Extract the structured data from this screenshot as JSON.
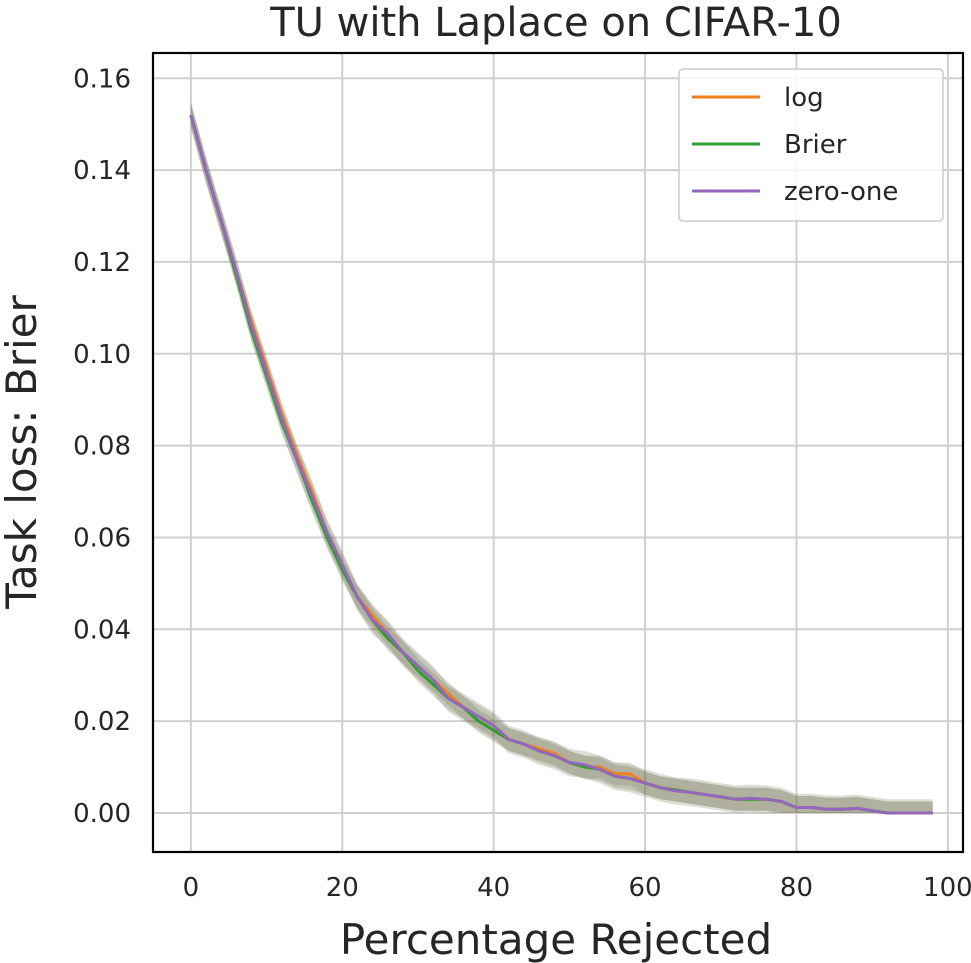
{
  "chart_data": {
    "type": "line",
    "title": "TU with Laplace on CIFAR-10",
    "xlabel": "Percentage Rejected",
    "ylabel": "Task loss: Brier",
    "xlim": [
      -5,
      102
    ],
    "ylim": [
      -0.0085,
      0.1655
    ],
    "xticks": [
      0,
      20,
      40,
      60,
      80,
      100
    ],
    "xtick_labels": [
      "0",
      "20",
      "40",
      "60",
      "80",
      "100"
    ],
    "yticks": [
      0.0,
      0.02,
      0.04,
      0.06,
      0.08,
      0.1,
      0.12,
      0.14,
      0.16
    ],
    "ytick_labels": [
      "0.00",
      "0.02",
      "0.04",
      "0.06",
      "0.08",
      "0.10",
      "0.12",
      "0.14",
      "0.16"
    ],
    "grid": true,
    "legend_position": "top-right",
    "x": [
      0,
      2,
      4,
      6,
      8,
      10,
      12,
      14,
      16,
      18,
      20,
      22,
      24,
      26,
      28,
      30,
      32,
      34,
      36,
      38,
      40,
      42,
      44,
      46,
      48,
      50,
      52,
      54,
      56,
      58,
      60,
      62,
      64,
      66,
      68,
      70,
      72,
      74,
      76,
      78,
      80,
      82,
      84,
      86,
      88,
      90,
      92,
      94,
      96,
      98
    ],
    "series": [
      {
        "name": "log",
        "color": "#f07f1e",
        "values": [
          0.152,
          0.14,
          0.129,
          0.118,
          0.107,
          0.097,
          0.087,
          0.078,
          0.07,
          0.061,
          0.054,
          0.047,
          0.043,
          0.039,
          0.035,
          0.032,
          0.029,
          0.026,
          0.023,
          0.021,
          0.019,
          0.016,
          0.015,
          0.014,
          0.013,
          0.011,
          0.01,
          0.01,
          0.0085,
          0.0085,
          0.0065,
          0.0055,
          0.005,
          0.0045,
          0.004,
          0.0035,
          0.003,
          0.003,
          0.003,
          0.0025,
          0.0012,
          0.0012,
          0.0008,
          0.0008,
          0.001,
          0.0005,
          0.0,
          0.0,
          0.0,
          0.0
        ],
        "band": 0.0025
      },
      {
        "name": "Brier",
        "color": "#2ca02c",
        "values": [
          0.152,
          0.14,
          0.129,
          0.117,
          0.105,
          0.095,
          0.085,
          0.077,
          0.068,
          0.06,
          0.053,
          0.047,
          0.042,
          0.038,
          0.035,
          0.031,
          0.028,
          0.025,
          0.023,
          0.02,
          0.018,
          0.016,
          0.015,
          0.0135,
          0.0125,
          0.011,
          0.01,
          0.0095,
          0.008,
          0.0075,
          0.0065,
          0.0055,
          0.005,
          0.0045,
          0.004,
          0.0035,
          0.003,
          0.003,
          0.003,
          0.0025,
          0.0012,
          0.0012,
          0.0008,
          0.0008,
          0.001,
          0.0005,
          0.0,
          0.0,
          0.0,
          0.0
        ],
        "band": 0.0025
      },
      {
        "name": "zero-one",
        "color": "#9467bd",
        "values": [
          0.152,
          0.14,
          0.129,
          0.118,
          0.106,
          0.096,
          0.086,
          0.077,
          0.069,
          0.061,
          0.054,
          0.047,
          0.042,
          0.039,
          0.035,
          0.032,
          0.029,
          0.025,
          0.023,
          0.021,
          0.019,
          0.016,
          0.015,
          0.0135,
          0.0125,
          0.011,
          0.0105,
          0.0095,
          0.008,
          0.0075,
          0.0065,
          0.0055,
          0.0048,
          0.0045,
          0.004,
          0.0035,
          0.003,
          0.0032,
          0.003,
          0.0025,
          0.0012,
          0.0012,
          0.0008,
          0.0008,
          0.001,
          0.0005,
          0.0,
          0.0,
          0.0,
          0.0
        ],
        "band": 0.003
      }
    ]
  }
}
